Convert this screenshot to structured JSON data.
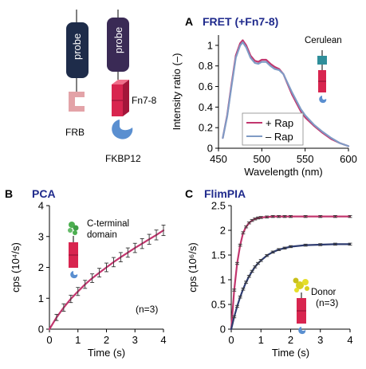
{
  "diagram": {
    "probe_label": "probe",
    "frb_label": "FRB",
    "fn_label": "Fn7-8",
    "fkbp_label": "FKBP12"
  },
  "colors": {
    "magenta": "#c2366e",
    "navy": "#2e3c70",
    "blue_series": "#7f9bc5",
    "title_blue": "#1f2a8c",
    "probe_body": "#1e2c4a",
    "probe2_body": "#3a2a55",
    "frb_pink": "#e3a3a8",
    "fkbp_blue": "#5a8fd0",
    "fn_red": "#d8254f",
    "cerulean_teal": "#2f8e9a",
    "c_terminal_green": "#4caf50",
    "donor_yellow": "#d8d020"
  },
  "chart_data": [
    {
      "id": "A",
      "type": "line",
      "panel_label": "A",
      "title": "FRET (+Fn7-8)",
      "xlabel": "Wavelength (nm)",
      "ylabel": "Intensity ratio (–)",
      "xlim": [
        450,
        600
      ],
      "ylim": [
        0,
        1.1
      ],
      "xticks": [
        450,
        500,
        550,
        600
      ],
      "yticks": [
        0,
        0.2,
        0.4,
        0.6,
        0.8,
        1
      ],
      "ytick_labels": [
        "0",
        "0.2",
        "0.4",
        "0.6",
        "0.8",
        "1"
      ],
      "annotation": "Cerulean",
      "legend": {
        "position": "bottom-left",
        "entries": [
          "+ Rap",
          "– Rap"
        ]
      },
      "x": [
        455,
        460,
        465,
        470,
        475,
        478,
        482,
        487,
        492,
        496,
        500,
        505,
        510,
        515,
        520,
        525,
        530,
        535,
        540,
        545,
        550,
        560,
        570,
        580,
        590,
        600
      ],
      "series": [
        {
          "name": "+ Rap",
          "color": "#c2366e",
          "values": [
            0.1,
            0.32,
            0.62,
            0.9,
            1.02,
            1.05,
            1.0,
            0.9,
            0.85,
            0.84,
            0.86,
            0.86,
            0.82,
            0.79,
            0.77,
            0.72,
            0.62,
            0.52,
            0.44,
            0.36,
            0.3,
            0.22,
            0.15,
            0.09,
            0.05,
            0.02
          ]
        },
        {
          "name": "– Rap",
          "color": "#7f9bc5",
          "values": [
            0.1,
            0.31,
            0.6,
            0.88,
            1.0,
            1.03,
            0.98,
            0.88,
            0.83,
            0.82,
            0.84,
            0.84,
            0.8,
            0.77,
            0.76,
            0.72,
            0.63,
            0.54,
            0.46,
            0.38,
            0.32,
            0.23,
            0.16,
            0.1,
            0.05,
            0.02
          ]
        }
      ]
    },
    {
      "id": "B",
      "type": "line",
      "panel_label": "B",
      "title": "PCA",
      "xlabel": "Time (s)",
      "ylabel": "cps (10⁴/s)",
      "xlim": [
        0,
        4
      ],
      "ylim": [
        0,
        4
      ],
      "xticks": [
        0,
        1,
        2,
        3,
        4
      ],
      "yticks": [
        0,
        1,
        2,
        3,
        4
      ],
      "annotation": "C-terminal domain",
      "n_label": "(n=3)",
      "x": [
        0,
        0.25,
        0.5,
        0.75,
        1,
        1.25,
        1.5,
        1.75,
        2,
        2.25,
        2.5,
        2.75,
        3,
        3.25,
        3.5,
        3.75,
        4
      ],
      "series": [
        {
          "name": "",
          "color": "#c2366e",
          "values": [
            0.0,
            0.38,
            0.7,
            0.98,
            1.22,
            1.45,
            1.65,
            1.83,
            2.0,
            2.17,
            2.33,
            2.48,
            2.63,
            2.77,
            2.91,
            3.05,
            3.2
          ]
        }
      ],
      "error_bars": [
        0.08,
        0.1,
        0.12,
        0.12,
        0.13,
        0.13,
        0.14,
        0.14,
        0.14,
        0.15,
        0.15,
        0.15,
        0.15,
        0.16,
        0.16,
        0.16,
        0.17
      ]
    },
    {
      "id": "C",
      "type": "line",
      "panel_label": "C",
      "title": "FlimPIA",
      "xlabel": "Time (s)",
      "ylabel": "cps (10⁶/s)",
      "xlim": [
        0,
        4
      ],
      "ylim": [
        0,
        2.5
      ],
      "xticks": [
        0,
        1,
        2,
        3,
        4
      ],
      "yticks": [
        0,
        0.5,
        1,
        1.5,
        2,
        2.5
      ],
      "annotation": "Donor",
      "n_label": "(n=3)",
      "x": [
        0,
        0.1,
        0.2,
        0.3,
        0.4,
        0.5,
        0.6,
        0.7,
        0.8,
        0.9,
        1.0,
        1.2,
        1.4,
        1.6,
        1.8,
        2.0,
        2.5,
        3.0,
        3.5,
        4.0
      ],
      "series": [
        {
          "name": "",
          "color": "#c2366e",
          "values": [
            0.0,
            0.79,
            1.33,
            1.7,
            1.95,
            2.07,
            2.15,
            2.2,
            2.23,
            2.25,
            2.26,
            2.27,
            2.28,
            2.28,
            2.28,
            2.28,
            2.28,
            2.28,
            2.28,
            2.28
          ]
        },
        {
          "name": "",
          "color": "#2e3c70",
          "values": [
            0.0,
            0.25,
            0.46,
            0.65,
            0.81,
            0.95,
            1.07,
            1.17,
            1.26,
            1.33,
            1.39,
            1.49,
            1.56,
            1.61,
            1.64,
            1.67,
            1.7,
            1.71,
            1.72,
            1.72
          ]
        }
      ],
      "error_bars": [
        0.02,
        0.02,
        0.02,
        0.02,
        0.02,
        0.02,
        0.02,
        0.02,
        0.02,
        0.02,
        0.02,
        0.02,
        0.02,
        0.02,
        0.02,
        0.02,
        0.02,
        0.02,
        0.02,
        0.02
      ]
    }
  ]
}
